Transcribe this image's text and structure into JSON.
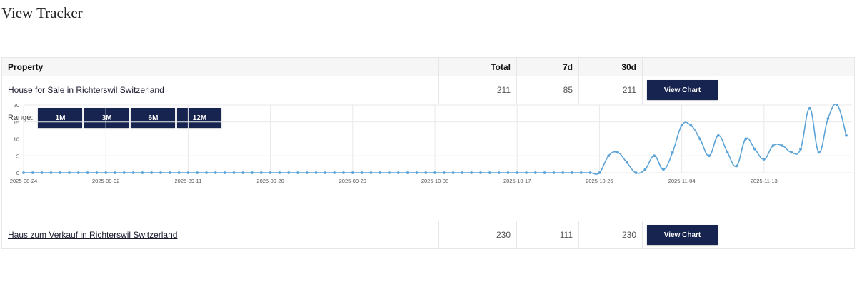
{
  "page": {
    "title": "View Tracker"
  },
  "table": {
    "headers": {
      "property": "Property",
      "total": "Total",
      "d7": "7d",
      "d30": "30d"
    },
    "rows": [
      {
        "property": "House for Sale in Richterswil Switzerland",
        "total": "211",
        "d7": "85",
        "d30": "211",
        "button": "View Chart"
      },
      {
        "property": "Haus zum Verkauf in Richterswil Switzerland",
        "total": "230",
        "d7": "111",
        "d30": "230",
        "button": "View Chart"
      }
    ]
  },
  "chart_panel": {
    "range_label": "Range:",
    "range_buttons": [
      "1M",
      "3M",
      "6M",
      "12M"
    ]
  },
  "colors": {
    "button_bg": "#172450",
    "line": "#5ba3d6"
  },
  "chart_data": {
    "type": "line",
    "title": "",
    "xlabel": "",
    "ylabel": "",
    "ylim": [
      0,
      20
    ],
    "yticks": [
      "0",
      "5",
      "10",
      "15",
      "20"
    ],
    "x_tick_labels": [
      "2025-08-24",
      "2025-09-02",
      "2025-09-11",
      "2025-09-20",
      "2025-09-29",
      "2025-10-08",
      "2025-10-17",
      "2025-10-26",
      "2025-11-04",
      "2025-11-13"
    ],
    "x_start": "2025-08-24",
    "x_end": "2025-11-22",
    "grid": true,
    "series": [
      {
        "values": [
          0,
          0,
          0,
          0,
          0,
          0,
          0,
          0,
          0,
          0,
          0,
          0,
          0,
          0,
          0,
          0,
          0,
          0,
          0,
          0,
          0,
          0,
          0,
          0,
          0,
          0,
          0,
          0,
          0,
          0,
          0,
          0,
          0,
          0,
          0,
          0,
          0,
          0,
          0,
          0,
          0,
          0,
          0,
          0,
          0,
          0,
          0,
          0,
          0,
          0,
          0,
          0,
          0,
          0,
          0,
          0,
          0,
          0,
          0,
          0,
          0,
          0,
          0,
          0,
          5,
          6,
          3,
          0,
          1,
          5,
          1,
          6,
          14,
          14,
          10,
          5,
          11,
          6,
          2,
          10,
          7,
          4,
          8,
          8,
          6,
          7,
          19,
          6,
          16,
          20,
          11
        ]
      }
    ]
  }
}
